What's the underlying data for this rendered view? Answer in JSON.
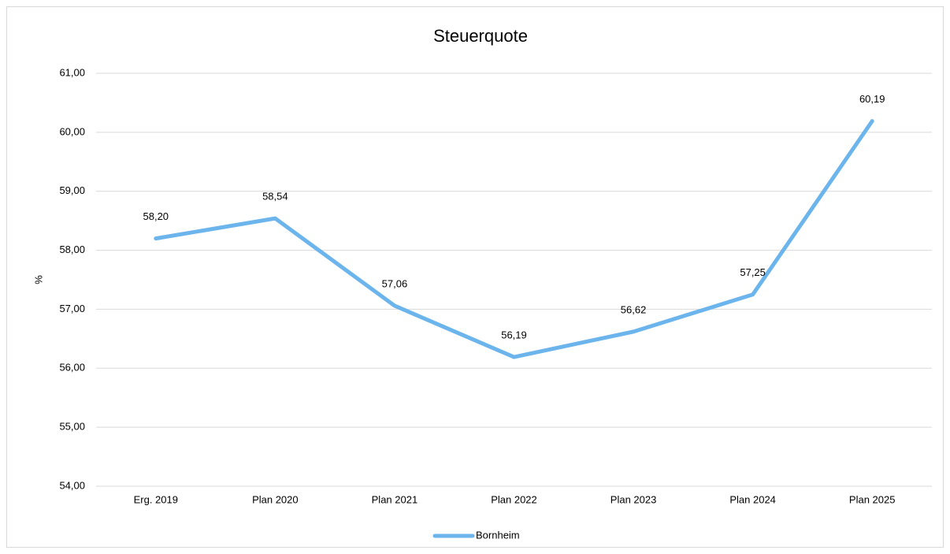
{
  "chart_data": {
    "type": "line",
    "title": "Steuerquote",
    "y_label": "%",
    "categories": [
      "Erg. 2019",
      "Plan 2020",
      "Plan 2021",
      "Plan 2022",
      "Plan 2023",
      "Plan 2024",
      "Plan 2025"
    ],
    "series": [
      {
        "name": "Bornheim",
        "color": "#6cb4ec",
        "values": [
          58.2,
          58.54,
          57.06,
          56.19,
          56.62,
          57.25,
          60.19
        ],
        "value_labels": [
          "58,20",
          "58,54",
          "57,06",
          "56,19",
          "56,62",
          "57,25",
          "60,19"
        ]
      }
    ],
    "ylim": [
      54,
      61
    ],
    "yticks": [
      {
        "value": 54,
        "label": "54,00"
      },
      {
        "value": 55,
        "label": "55,00"
      },
      {
        "value": 56,
        "label": "56,00"
      },
      {
        "value": 57,
        "label": "57,00"
      },
      {
        "value": 58,
        "label": "58,00"
      },
      {
        "value": 59,
        "label": "59,00"
      },
      {
        "value": 60,
        "label": "60,00"
      },
      {
        "value": 61,
        "label": "61,00"
      }
    ],
    "grid": true,
    "legend": "bottom"
  }
}
